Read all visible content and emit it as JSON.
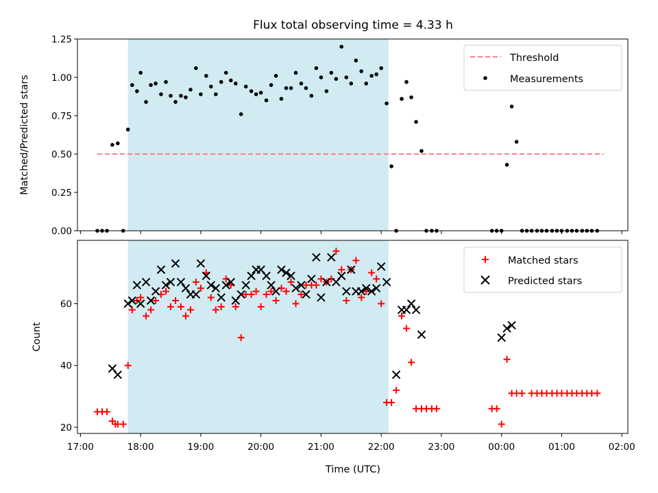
{
  "chart_data": {
    "type": "scatter",
    "title": "Flux total observing time = 4.33 h",
    "xlabel": "Time (UTC)",
    "x_unit": "hours after 17:00 UTC",
    "xlim": [
      -0.05,
      9.1
    ],
    "xticks": [
      {
        "value": 0,
        "label": "17:00"
      },
      {
        "value": 1,
        "label": "18:00"
      },
      {
        "value": 2,
        "label": "19:00"
      },
      {
        "value": 3,
        "label": "20:00"
      },
      {
        "value": 4,
        "label": "21:00"
      },
      {
        "value": 5,
        "label": "22:00"
      },
      {
        "value": 6,
        "label": "23:00"
      },
      {
        "value": 7,
        "label": "00:00"
      },
      {
        "value": 8,
        "label": "01:00"
      },
      {
        "value": 9,
        "label": "02:00"
      }
    ],
    "shaded_region": {
      "x": [
        0.79,
        5.12
      ],
      "color": "#add8e6"
    },
    "panels": [
      {
        "ylabel": "Matched/Predicted stars",
        "ylim": [
          0,
          1.25
        ],
        "yticks": [
          {
            "value": 0,
            "label": "0.00"
          },
          {
            "value": 0.25,
            "label": "0.25"
          },
          {
            "value": 0.5,
            "label": "0.50"
          },
          {
            "value": 0.75,
            "label": "0.75"
          },
          {
            "value": 1.0,
            "label": "1.00"
          },
          {
            "value": 1.25,
            "label": "1.25"
          }
        ],
        "legend_position": "top-right",
        "threshold": {
          "name": "Threshold",
          "y": 0.5,
          "x_range": [
            0.28,
            8.7
          ],
          "color": "#ff7f7f"
        },
        "series": [
          {
            "name": "Measurements",
            "marker": "dot",
            "color": "#000000",
            "x": [
              0.28,
              0.36,
              0.44,
              0.53,
              0.62,
              0.71,
              0.79,
              0.86,
              0.94,
              1.0,
              1.09,
              1.17,
              1.25,
              1.34,
              1.42,
              1.5,
              1.58,
              1.67,
              1.75,
              1.83,
              1.92,
              2.0,
              2.09,
              2.17,
              2.25,
              2.34,
              2.42,
              2.5,
              2.58,
              2.67,
              2.75,
              2.84,
              2.92,
              3.0,
              3.09,
              3.17,
              3.25,
              3.34,
              3.42,
              3.5,
              3.58,
              3.67,
              3.75,
              3.84,
              3.92,
              4.0,
              4.09,
              4.17,
              4.25,
              4.34,
              4.42,
              4.5,
              4.58,
              4.67,
              4.75,
              4.84,
              4.92,
              5.0,
              5.09,
              5.17,
              5.25,
              5.34,
              5.42,
              5.5,
              5.58,
              5.67,
              5.75,
              5.84,
              5.92,
              6.84,
              6.92,
              7.0,
              7.09,
              7.17,
              7.25,
              7.34,
              7.42,
              7.5,
              7.59,
              7.67,
              7.75,
              7.84,
              7.92,
              8.0,
              8.09,
              8.17,
              8.25,
              8.34,
              8.42,
              8.5,
              8.59
            ],
            "y": [
              0,
              0,
              0,
              0.56,
              0.57,
              0,
              0.66,
              0.95,
              0.91,
              1.03,
              0.84,
              0.95,
              0.96,
              0.89,
              0.97,
              0.88,
              0.84,
              0.88,
              0.87,
              0.92,
              1.06,
              0.89,
              1.01,
              0.94,
              0.89,
              0.97,
              1.03,
              0.98,
              0.96,
              0.76,
              0.94,
              0.91,
              0.89,
              0.9,
              0.85,
              0.95,
              1.01,
              0.86,
              0.93,
              0.93,
              1.03,
              0.96,
              0.93,
              0.88,
              1.06,
              1.0,
              0.91,
              1.03,
              0.99,
              1.2,
              1.0,
              0.96,
              1.11,
              1.04,
              0.96,
              1.01,
              1.02,
              1.06,
              0.83,
              0.42,
              0,
              0.86,
              0.97,
              0.87,
              0.71,
              0.52,
              0,
              0,
              0,
              0,
              0,
              0,
              0.43,
              0.81,
              0.58,
              0,
              0,
              0,
              0,
              0,
              0,
              0,
              0,
              0,
              0,
              0,
              0,
              0,
              0,
              0,
              0
            ]
          }
        ]
      },
      {
        "ylabel": "Count",
        "ylim": [
          18,
          80.5
        ],
        "yticks": [
          {
            "value": 20,
            "label": "20"
          },
          {
            "value": 40,
            "label": "40"
          },
          {
            "value": 60,
            "label": "60"
          }
        ],
        "legend_position": "top-right",
        "series": [
          {
            "name": "Matched stars",
            "marker": "plus",
            "color": "#ff0000",
            "x": [
              0.28,
              0.36,
              0.44,
              0.53,
              0.58,
              0.62,
              0.71,
              0.79,
              0.86,
              0.94,
              1.0,
              1.09,
              1.17,
              1.25,
              1.34,
              1.42,
              1.5,
              1.58,
              1.67,
              1.75,
              1.83,
              1.92,
              2.0,
              2.09,
              2.17,
              2.25,
              2.34,
              2.42,
              2.5,
              2.58,
              2.67,
              2.75,
              2.84,
              2.92,
              3.0,
              3.09,
              3.17,
              3.25,
              3.34,
              3.42,
              3.5,
              3.58,
              3.67,
              3.75,
              3.84,
              3.92,
              4.0,
              4.09,
              4.17,
              4.25,
              4.34,
              4.42,
              4.5,
              4.58,
              4.67,
              4.75,
              4.84,
              4.92,
              5.0,
              5.09,
              5.17,
              5.25,
              5.34,
              5.42,
              5.5,
              5.58,
              5.67,
              5.75,
              5.84,
              5.92,
              6.84,
              6.92,
              7.0,
              7.09,
              7.17,
              7.25,
              7.34,
              7.5,
              7.59,
              7.67,
              7.75,
              7.84,
              7.92,
              8.0,
              8.09,
              8.17,
              8.25,
              8.34,
              8.42,
              8.5,
              8.59
            ],
            "y": [
              25,
              25,
              25,
              22,
              21,
              21,
              21,
              40,
              58,
              61,
              62,
              56,
              58,
              61,
              63,
              64,
              59,
              61,
              59,
              56,
              58,
              67,
              65,
              70,
              62,
              58,
              59,
              68,
              66,
              59,
              49,
              63,
              63,
              64,
              59,
              63,
              64,
              61,
              65,
              64,
              67,
              60,
              63,
              66,
              66,
              66,
              68,
              67,
              68,
              77,
              71,
              61,
              71,
              74,
              62,
              64,
              70,
              68,
              60,
              28,
              28,
              32,
              56,
              52,
              41,
              26,
              26,
              26,
              26,
              26,
              26,
              26,
              21,
              42,
              31,
              31,
              31,
              31,
              31,
              31,
              31,
              31,
              31,
              31,
              31,
              31,
              31,
              31,
              31,
              31,
              31
            ],
            "x_note": "aligned by index with y"
          },
          {
            "name": "Predicted stars",
            "marker": "x",
            "color": "#000000",
            "x": [
              0.53,
              0.62,
              0.79,
              0.86,
              0.94,
              1.0,
              1.09,
              1.17,
              1.25,
              1.34,
              1.42,
              1.5,
              1.58,
              1.67,
              1.75,
              1.83,
              1.92,
              2.0,
              2.09,
              2.17,
              2.25,
              2.34,
              2.42,
              2.5,
              2.58,
              2.67,
              2.75,
              2.84,
              2.92,
              3.0,
              3.09,
              3.17,
              3.25,
              3.34,
              3.42,
              3.5,
              3.58,
              3.67,
              3.75,
              3.84,
              3.92,
              4.0,
              4.09,
              4.17,
              4.25,
              4.34,
              4.42,
              4.5,
              4.58,
              4.67,
              4.75,
              4.84,
              4.92,
              5.0,
              5.09,
              5.25,
              5.34,
              5.42,
              5.5,
              5.58,
              5.67,
              7.0,
              7.09,
              7.17
            ],
            "y": [
              39,
              37,
              60,
              61,
              66,
              60,
              67,
              61,
              64,
              71,
              66,
              67,
              73,
              67,
              65,
              63,
              63,
              73,
              69,
              66,
              65,
              62,
              66,
              67,
              61,
              63,
              66,
              69,
              71,
              71,
              69,
              66,
              64,
              71,
              70,
              69,
              65,
              66,
              63,
              68,
              75,
              62,
              67,
              75,
              67,
              69,
              64,
              71,
              64,
              64,
              65,
              64,
              65,
              72,
              67,
              37,
              58,
              58,
              60,
              58,
              50,
              49,
              52,
              53
            ]
          }
        ]
      }
    ]
  }
}
